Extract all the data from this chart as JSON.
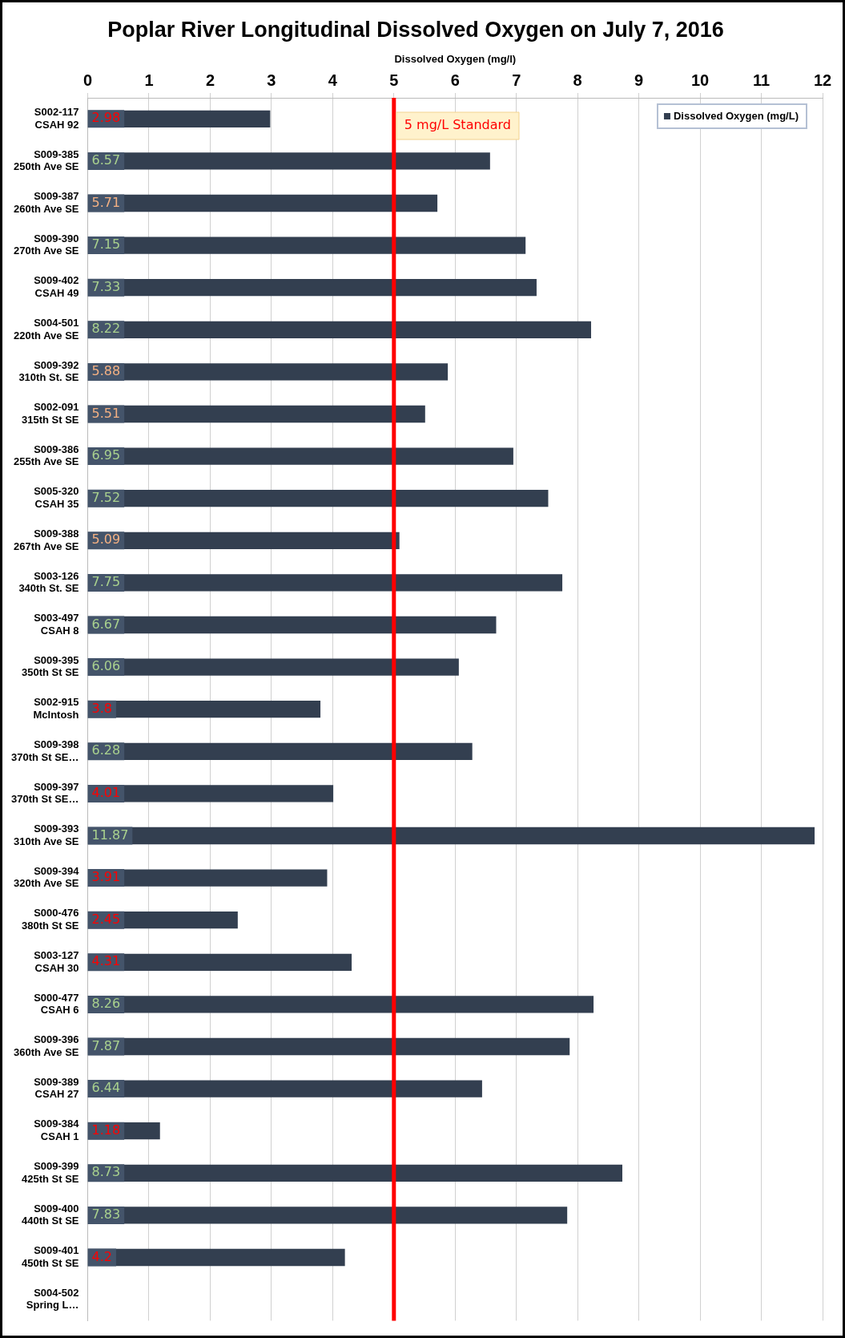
{
  "chart_data": {
    "type": "bar",
    "orientation": "horizontal",
    "title": "Poplar River Longitudinal Dissolved Oxygen on July 7, 2016",
    "xlabel": "Dissolved Oxygen (mg/l)",
    "categories": [
      "S002-117\nCSAH 92",
      "S009-385\n250th Ave SE",
      "S009-387\n260th Ave SE",
      "S009-390\n270th Ave SE",
      "S009-402\nCSAH 49",
      "S004-501\n220th Ave SE",
      "S009-392\n310th St. SE",
      "S002-091\n315th St SE",
      "S009-386\n255th Ave SE",
      "S005-320\nCSAH 35",
      "S009-388\n267th Ave SE",
      "S003-126\n340th St. SE",
      "S003-497\nCSAH 8",
      "S009-395\n350th St SE",
      "S002-915\nMcIntosh",
      "S009-398\n370th St SE…",
      "S009-397\n370th St SE…",
      "S009-393\n310th Ave SE",
      "S009-394\n320th Ave SE",
      "S000-476\n380th St SE",
      "S003-127\nCSAH 30",
      "S000-477\nCSAH 6",
      "S009-396\n360th Ave SE",
      "S009-389\nCSAH 27",
      "S009-384\nCSAH 1",
      "S009-399\n425th St SE",
      "S009-400\n440th St SE",
      "S009-401\n450th St SE",
      "S004-502\nSpring L…"
    ],
    "series": [
      {
        "name": "Dissolved Oxygen (mg/L)",
        "color": "#333f50",
        "values": [
          2.98,
          6.57,
          5.71,
          7.15,
          7.33,
          8.22,
          5.88,
          5.51,
          6.95,
          7.52,
          5.09,
          7.75,
          6.67,
          6.06,
          3.8,
          6.28,
          4.01,
          11.87,
          3.91,
          2.45,
          4.31,
          8.26,
          7.87,
          6.44,
          1.18,
          8.73,
          7.83,
          4.2,
          null
        ]
      }
    ],
    "xlim": [
      0,
      12
    ],
    "xticks": [
      0,
      1,
      2,
      3,
      4,
      5,
      6,
      7,
      8,
      9,
      10,
      11,
      12
    ],
    "grid": "x",
    "legend": "top right",
    "data_labels": true,
    "ref_lines": [
      {
        "axis": "x",
        "value": 5,
        "label": "5 mg/L Standard",
        "color": "#ff0000"
      }
    ]
  }
}
